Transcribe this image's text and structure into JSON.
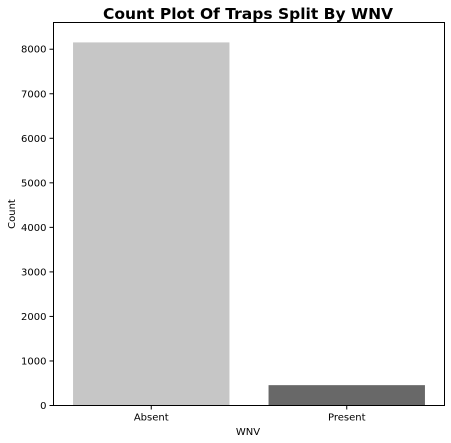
{
  "chart_data": {
    "type": "bar",
    "title": "Count Plot Of Traps Split By WNV",
    "xlabel": "WNV",
    "ylabel": "Count",
    "categories": [
      "Absent",
      "Present"
    ],
    "values": [
      8153,
      457
    ],
    "ylim": [
      0,
      8600
    ],
    "yticks": [
      0,
      1000,
      2000,
      3000,
      4000,
      5000,
      6000,
      7000,
      8000
    ],
    "colors": [
      "#c6c6c6",
      "#686868"
    ],
    "grid": false,
    "legend": "none"
  }
}
